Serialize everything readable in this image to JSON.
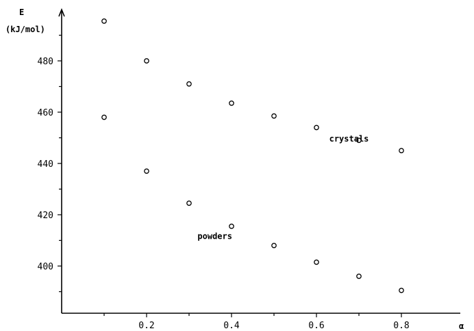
{
  "chart_data": {
    "type": "scatter",
    "title": "",
    "ylabel_symbol": "E",
    "ylabel_unit": "(kJ/mol)",
    "xlabel": "α",
    "xlim": [
      0,
      0.9
    ],
    "ylim": [
      380,
      500
    ],
    "xticks": [
      {
        "value": 0.2,
        "label": "0.2"
      },
      {
        "value": 0.4,
        "label": "0.4"
      },
      {
        "value": 0.6,
        "label": "0.6"
      },
      {
        "value": 0.8,
        "label": "0.8"
      }
    ],
    "xminor": [
      0.1,
      0.3,
      0.5,
      0.7
    ],
    "yticks": [
      {
        "value": 400,
        "label": "400"
      },
      {
        "value": 420,
        "label": "420"
      },
      {
        "value": 440,
        "label": "440"
      },
      {
        "value": 460,
        "label": "460"
      },
      {
        "value": 480,
        "label": "480"
      }
    ],
    "yminor": [
      390,
      410,
      430,
      450,
      470,
      490
    ],
    "grid": false,
    "series": [
      {
        "name": "crystals",
        "x": [
          0.1,
          0.2,
          0.3,
          0.4,
          0.5,
          0.6,
          0.7,
          0.8
        ],
        "y": [
          495.5,
          480,
          471,
          463.5,
          458.5,
          454,
          449,
          445
        ]
      },
      {
        "name": "powders",
        "x": [
          0.1,
          0.2,
          0.3,
          0.4,
          0.5,
          0.6,
          0.7,
          0.8
        ],
        "y": [
          458,
          437,
          424.5,
          415.5,
          408,
          401.5,
          396,
          390.5
        ]
      }
    ]
  }
}
